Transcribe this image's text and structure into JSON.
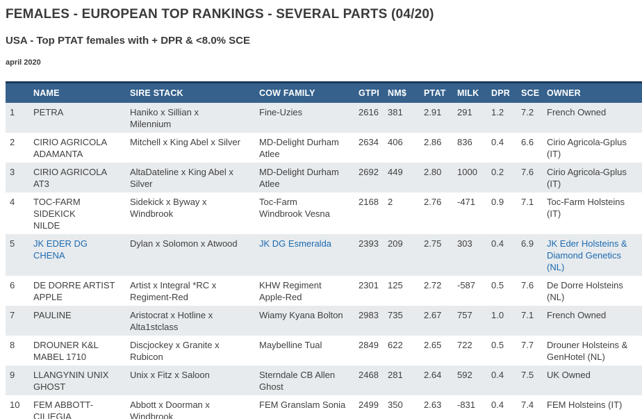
{
  "page": {
    "title": "FEMALES - EUROPEAN TOP RANKINGS - SEVERAL PARTS (04/20)",
    "subtitle": "USA - Top PTAT females with + DPR & <8.0% SCE",
    "date_label": "april 2020"
  },
  "colors": {
    "header_bg": "#35618c",
    "header_top_border": "#1c3a57",
    "stripe_row_bg": "#e7ebee",
    "link_blue": "#1d6ab0",
    "text_dark": "#3a3a3a"
  },
  "table": {
    "columns": [
      {
        "key": "rank",
        "label": ""
      },
      {
        "key": "name",
        "label": "NAME"
      },
      {
        "key": "sire_stack",
        "label": "SIRE STACK"
      },
      {
        "key": "cow_family",
        "label": "COW FAMILY"
      },
      {
        "key": "gtpi",
        "label": "GTPI"
      },
      {
        "key": "nm",
        "label": "NM$"
      },
      {
        "key": "ptat",
        "label": "PTAT"
      },
      {
        "key": "milk",
        "label": "MILK"
      },
      {
        "key": "dpr",
        "label": "DPR"
      },
      {
        "key": "sce",
        "label": "SCE"
      },
      {
        "key": "owner",
        "label": "OWNER"
      }
    ],
    "rows": [
      {
        "rank": "1",
        "name": "PETRA",
        "sire_stack": "Haniko x Sillian x\nMilennium",
        "cow_family": "Fine-Uzies",
        "gtpi": "2616",
        "nm": "381",
        "ptat": "2.91",
        "milk": "291",
        "dpr": "1.2",
        "sce": "7.2",
        "owner": "French Owned",
        "linked": false
      },
      {
        "rank": "2",
        "name": "CIRIO AGRICOLA\nADAMANTA",
        "sire_stack": "Mitchell x King Abel x Silver",
        "cow_family": "MD-Delight Durham\nAtlee",
        "gtpi": "2634",
        "nm": "406",
        "ptat": "2.86",
        "milk": "836",
        "dpr": "0.4",
        "sce": "6.6",
        "owner": "Cirio Agricola-Gplus\n(IT)",
        "linked": false
      },
      {
        "rank": "3",
        "name": "CIRIO AGRICOLA AT3",
        "sire_stack": "AltaDateline x King Abel x\nSilver",
        "cow_family": "MD-Delight Durham\nAtlee",
        "gtpi": "2692",
        "nm": "449",
        "ptat": "2.80",
        "milk": "1000",
        "dpr": "0.2",
        "sce": "7.6",
        "owner": "Cirio Agricola-Gplus\n(IT)",
        "linked": false
      },
      {
        "rank": "4",
        "name": "TOC-FARM SIDEKICK\nNILDE",
        "sire_stack": "Sidekick x Byway x\nWindbrook",
        "cow_family": "Toc-Farm\nWindbrook Vesna",
        "gtpi": "2168",
        "nm": "2",
        "ptat": "2.76",
        "milk": "-471",
        "dpr": "0.9",
        "sce": "7.1",
        "owner": "Toc-Farm Holsteins\n(IT)",
        "linked": false
      },
      {
        "rank": "5",
        "name": "JK EDER DG CHENA",
        "sire_stack": "Dylan x Solomon x Atwood",
        "cow_family": "JK DG Esmeralda",
        "gtpi": "2393",
        "nm": "209",
        "ptat": "2.75",
        "milk": "303",
        "dpr": "0.4",
        "sce": "6.9",
        "owner": "JK Eder Holsteins &\nDiamond Genetics\n(NL)",
        "linked": true
      },
      {
        "rank": "6",
        "name": "DE DORRE ARTIST\nAPPLE",
        "sire_stack": "Artist x Integral *RC x\nRegiment-Red",
        "cow_family": "KHW Regiment\nApple-Red",
        "gtpi": "2301",
        "nm": "125",
        "ptat": "2.72",
        "milk": "-587",
        "dpr": "0.5",
        "sce": "7.6",
        "owner": "De Dorre Holsteins\n(NL)",
        "linked": false
      },
      {
        "rank": "7",
        "name": "PAULINE",
        "sire_stack": "Aristocrat x Hotline x\nAlta1stclass",
        "cow_family": "Wiamy Kyana Bolton",
        "gtpi": "2983",
        "nm": "735",
        "ptat": "2.67",
        "milk": "757",
        "dpr": "1.0",
        "sce": "7.1",
        "owner": "French Owned",
        "linked": false
      },
      {
        "rank": "8",
        "name": "DROUNER K&L\nMABEL 1710",
        "sire_stack": "Discjockey x Granite x\nRubicon",
        "cow_family": "Maybelline Tual",
        "gtpi": "2849",
        "nm": "622",
        "ptat": "2.65",
        "milk": "722",
        "dpr": "0.5",
        "sce": "7.7",
        "owner": "Drouner Holsteins &\nGenHotel (NL)",
        "linked": false
      },
      {
        "rank": "9",
        "name": "LLANGYNIN UNIX\nGHOST",
        "sire_stack": "Unix x Fitz x Saloon",
        "cow_family": "Sterndale CB Allen\nGhost",
        "gtpi": "2468",
        "nm": "281",
        "ptat": "2.64",
        "milk": "592",
        "dpr": "0.4",
        "sce": "7.5",
        "owner": "UK Owned",
        "linked": false
      },
      {
        "rank": "10",
        "name": "FEM ABBOTT-\nCILIEGIA",
        "sire_stack": "Abbott x Doorman x\nWindbrook",
        "cow_family": "FEM Granslam Sonia",
        "gtpi": "2499",
        "nm": "350",
        "ptat": "2.63",
        "milk": "-831",
        "dpr": "0.4",
        "sce": "7.4",
        "owner": "FEM Holsteins (IT)",
        "linked": false
      }
    ]
  }
}
